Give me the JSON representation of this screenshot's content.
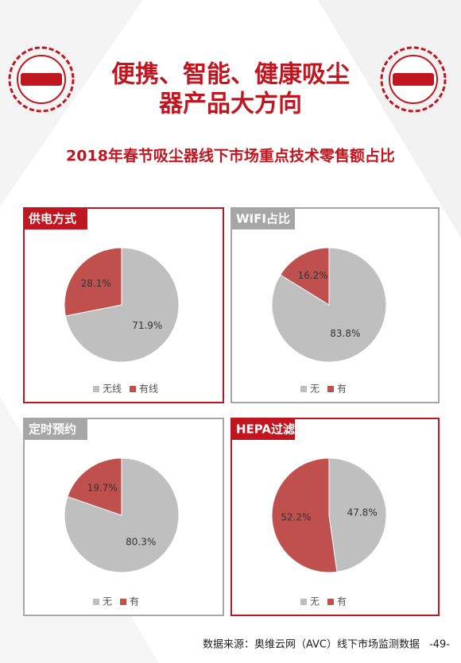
{
  "header": {
    "title_line1": "便携、智能、健康吸尘",
    "title_line2": "器产品大方向",
    "subtitle": "2018年春节吸尘器线下市场重点技术零售额占比"
  },
  "chart_data": [
    {
      "type": "pie",
      "title": "供电方式",
      "categories": [
        "无线",
        "有线"
      ],
      "values": [
        71.9,
        28.1
      ],
      "value_labels": [
        "71.9%",
        "28.1%"
      ],
      "colors": [
        "#bfbfbf",
        "#c0504d"
      ]
    },
    {
      "type": "pie",
      "title": "WIFI占比",
      "categories": [
        "无",
        "有"
      ],
      "values": [
        83.8,
        16.2
      ],
      "value_labels": [
        "83.8%",
        "16.2%"
      ],
      "colors": [
        "#bfbfbf",
        "#c0504d"
      ]
    },
    {
      "type": "pie",
      "title": "定时预约",
      "categories": [
        "无",
        "有"
      ],
      "values": [
        80.3,
        19.7
      ],
      "value_labels": [
        "80.3%",
        "19.7%"
      ],
      "colors": [
        "#bfbfbf",
        "#c0504d"
      ]
    },
    {
      "type": "pie",
      "title": "HEPA过滤",
      "categories": [
        "无",
        "有"
      ],
      "values": [
        47.8,
        52.2
      ],
      "value_labels": [
        "47.8%",
        "52.2%"
      ],
      "colors": [
        "#bfbfbf",
        "#c0504d"
      ]
    }
  ],
  "footer": {
    "source": "数据来源：奥维云网（AVC）线下市场监测数据",
    "page": "-49-"
  }
}
